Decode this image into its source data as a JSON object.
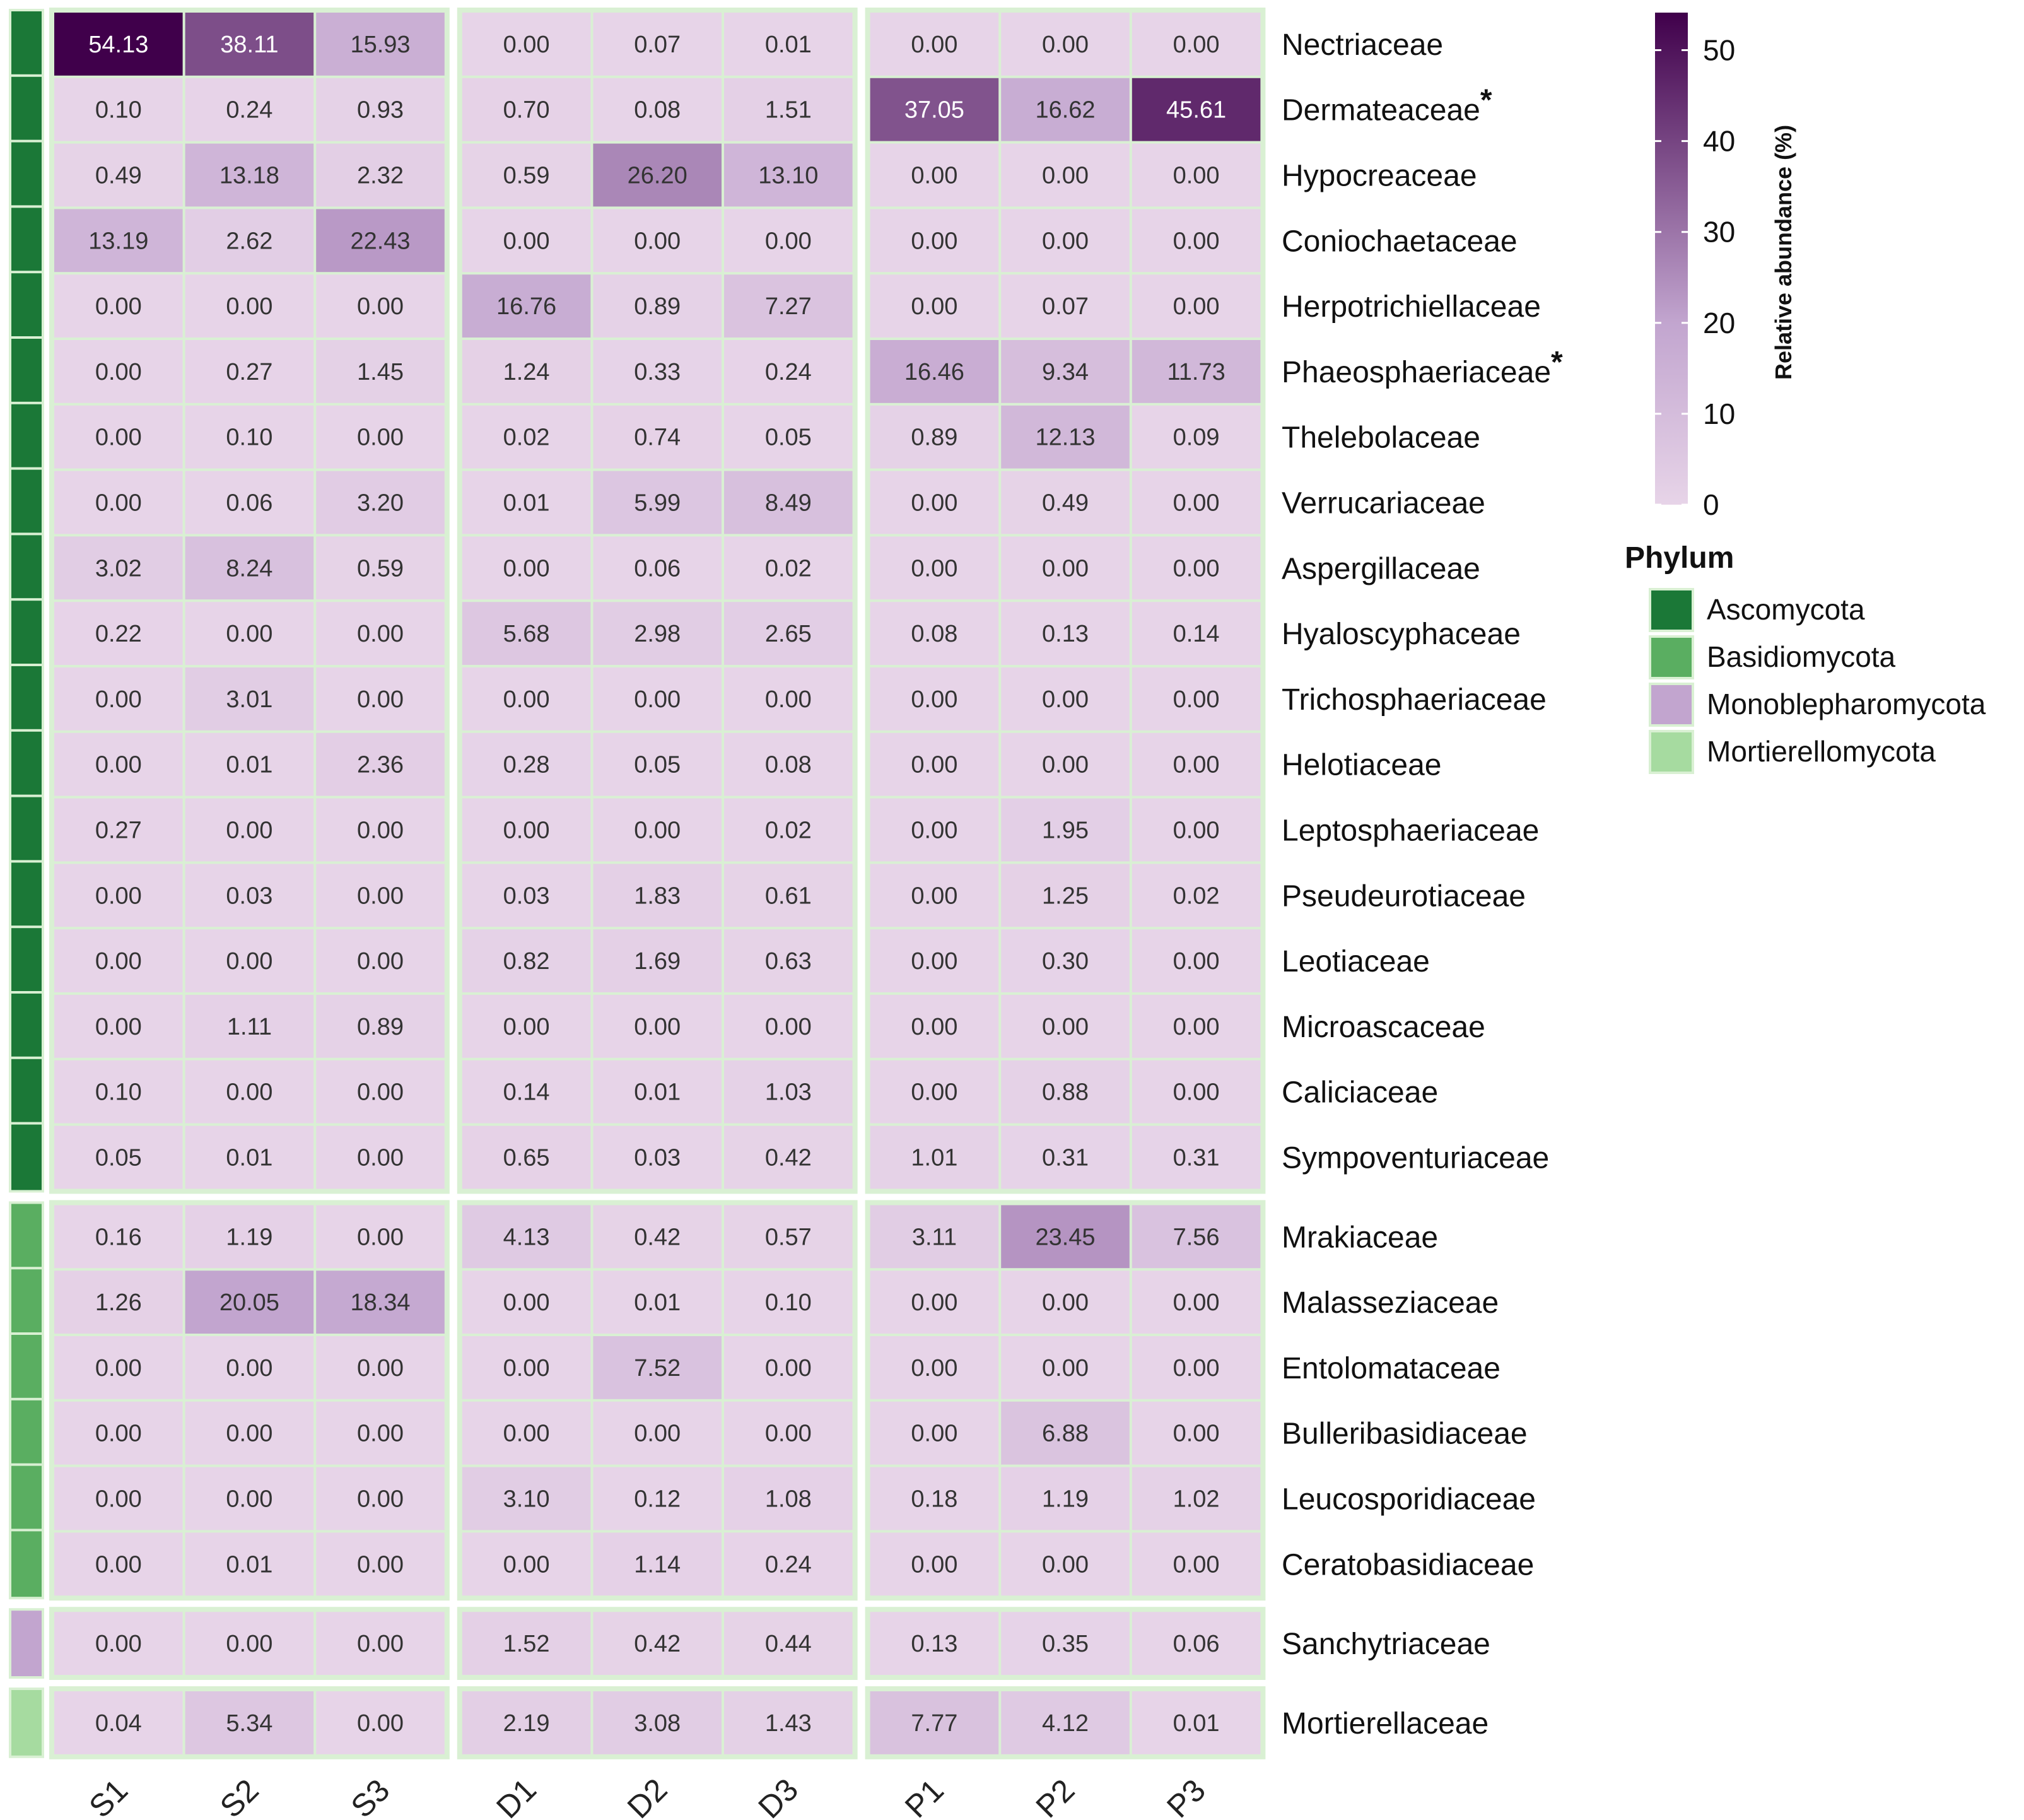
{
  "chart_data": {
    "type": "heatmap",
    "columns": [
      "S1",
      "S2",
      "S3",
      "D1",
      "D2",
      "D3",
      "P1",
      "P2",
      "P3"
    ],
    "column_groups": [
      [
        "S1",
        "S2",
        "S3"
      ],
      [
        "D1",
        "D2",
        "D3"
      ],
      [
        "P1",
        "P2",
        "P3"
      ]
    ],
    "rows": [
      {
        "label": "Nectriaceae",
        "asterisk": false,
        "phylum": "Ascomycota",
        "values": [
          "54.13",
          "38.11",
          "15.93",
          "0.00",
          "0.07",
          "0.01",
          "0.00",
          "0.00",
          "0.00"
        ]
      },
      {
        "label": "Dermateaceae",
        "asterisk": true,
        "phylum": "Ascomycota",
        "values": [
          "0.10",
          "0.24",
          "0.93",
          "0.70",
          "0.08",
          "1.51",
          "37.05",
          "16.62",
          "45.61"
        ]
      },
      {
        "label": "Hypocreaceae",
        "asterisk": false,
        "phylum": "Ascomycota",
        "values": [
          "0.49",
          "13.18",
          "2.32",
          "0.59",
          "26.20",
          "13.10",
          "0.00",
          "0.00",
          "0.00"
        ]
      },
      {
        "label": "Coniochaetaceae",
        "asterisk": false,
        "phylum": "Ascomycota",
        "values": [
          "13.19",
          "2.62",
          "22.43",
          "0.00",
          "0.00",
          "0.00",
          "0.00",
          "0.00",
          "0.00"
        ]
      },
      {
        "label": "Herpotrichiellaceae",
        "asterisk": false,
        "phylum": "Ascomycota",
        "values": [
          "0.00",
          "0.00",
          "0.00",
          "16.76",
          "0.89",
          "7.27",
          "0.00",
          "0.07",
          "0.00"
        ]
      },
      {
        "label": "Phaeosphaeriaceae",
        "asterisk": true,
        "phylum": "Ascomycota",
        "values": [
          "0.00",
          "0.27",
          "1.45",
          "1.24",
          "0.33",
          "0.24",
          "16.46",
          "9.34",
          "11.73"
        ]
      },
      {
        "label": "Thelebolaceae",
        "asterisk": false,
        "phylum": "Ascomycota",
        "values": [
          "0.00",
          "0.10",
          "0.00",
          "0.02",
          "0.74",
          "0.05",
          "0.89",
          "12.13",
          "0.09"
        ]
      },
      {
        "label": "Verrucariaceae",
        "asterisk": false,
        "phylum": "Ascomycota",
        "values": [
          "0.00",
          "0.06",
          "3.20",
          "0.01",
          "5.99",
          "8.49",
          "0.00",
          "0.49",
          "0.00"
        ]
      },
      {
        "label": "Aspergillaceae",
        "asterisk": false,
        "phylum": "Ascomycota",
        "values": [
          "3.02",
          "8.24",
          "0.59",
          "0.00",
          "0.06",
          "0.02",
          "0.00",
          "0.00",
          "0.00"
        ]
      },
      {
        "label": "Hyaloscyphaceae",
        "asterisk": false,
        "phylum": "Ascomycota",
        "values": [
          "0.22",
          "0.00",
          "0.00",
          "5.68",
          "2.98",
          "2.65",
          "0.08",
          "0.13",
          "0.14"
        ]
      },
      {
        "label": "Trichosphaeriaceae",
        "asterisk": false,
        "phylum": "Ascomycota",
        "values": [
          "0.00",
          "3.01",
          "0.00",
          "0.00",
          "0.00",
          "0.00",
          "0.00",
          "0.00",
          "0.00"
        ]
      },
      {
        "label": "Helotiaceae",
        "asterisk": false,
        "phylum": "Ascomycota",
        "values": [
          "0.00",
          "0.01",
          "2.36",
          "0.28",
          "0.05",
          "0.08",
          "0.00",
          "0.00",
          "0.00"
        ]
      },
      {
        "label": "Leptosphaeriaceae",
        "asterisk": false,
        "phylum": "Ascomycota",
        "values": [
          "0.27",
          "0.00",
          "0.00",
          "0.00",
          "0.00",
          "0.02",
          "0.00",
          "1.95",
          "0.00"
        ]
      },
      {
        "label": "Pseudeurotiaceae",
        "asterisk": false,
        "phylum": "Ascomycota",
        "values": [
          "0.00",
          "0.03",
          "0.00",
          "0.03",
          "1.83",
          "0.61",
          "0.00",
          "1.25",
          "0.02"
        ]
      },
      {
        "label": "Leotiaceae",
        "asterisk": false,
        "phylum": "Ascomycota",
        "values": [
          "0.00",
          "0.00",
          "0.00",
          "0.82",
          "1.69",
          "0.63",
          "0.00",
          "0.30",
          "0.00"
        ]
      },
      {
        "label": "Microascaceae",
        "asterisk": false,
        "phylum": "Ascomycota",
        "values": [
          "0.00",
          "1.11",
          "0.89",
          "0.00",
          "0.00",
          "0.00",
          "0.00",
          "0.00",
          "0.00"
        ]
      },
      {
        "label": "Caliciaceae",
        "asterisk": false,
        "phylum": "Ascomycota",
        "values": [
          "0.10",
          "0.00",
          "0.00",
          "0.14",
          "0.01",
          "1.03",
          "0.00",
          "0.88",
          "0.00"
        ]
      },
      {
        "label": "Sympoventuriaceae",
        "asterisk": false,
        "phylum": "Ascomycota",
        "values": [
          "0.05",
          "0.01",
          "0.00",
          "0.65",
          "0.03",
          "0.42",
          "1.01",
          "0.31",
          "0.31"
        ]
      },
      {
        "label": "Mrakiaceae",
        "asterisk": false,
        "phylum": "Basidiomycota",
        "values": [
          "0.16",
          "1.19",
          "0.00",
          "4.13",
          "0.42",
          "0.57",
          "3.11",
          "23.45",
          "7.56"
        ]
      },
      {
        "label": "Malasseziaceae",
        "asterisk": false,
        "phylum": "Basidiomycota",
        "values": [
          "1.26",
          "20.05",
          "18.34",
          "0.00",
          "0.01",
          "0.10",
          "0.00",
          "0.00",
          "0.00"
        ]
      },
      {
        "label": "Entolomataceae",
        "asterisk": false,
        "phylum": "Basidiomycota",
        "values": [
          "0.00",
          "0.00",
          "0.00",
          "0.00",
          "7.52",
          "0.00",
          "0.00",
          "0.00",
          "0.00"
        ]
      },
      {
        "label": "Bulleribasidiaceae",
        "asterisk": false,
        "phylum": "Basidiomycota",
        "values": [
          "0.00",
          "0.00",
          "0.00",
          "0.00",
          "0.00",
          "0.00",
          "0.00",
          "6.88",
          "0.00"
        ]
      },
      {
        "label": "Leucosporidiaceae",
        "asterisk": false,
        "phylum": "Basidiomycota",
        "values": [
          "0.00",
          "0.00",
          "0.00",
          "3.10",
          "0.12",
          "1.08",
          "0.18",
          "1.19",
          "1.02"
        ]
      },
      {
        "label": "Ceratobasidiaceae",
        "asterisk": false,
        "phylum": "Basidiomycota",
        "values": [
          "0.00",
          "0.01",
          "0.00",
          "0.00",
          "1.14",
          "0.24",
          "0.00",
          "0.00",
          "0.00"
        ]
      },
      {
        "label": "Sanchytriaceae",
        "asterisk": false,
        "phylum": "Monoblepharomycota",
        "values": [
          "0.00",
          "0.00",
          "0.00",
          "1.52",
          "0.42",
          "0.44",
          "0.13",
          "0.35",
          "0.06"
        ]
      },
      {
        "label": "Mortierellaceae",
        "asterisk": false,
        "phylum": "Mortierellomycota",
        "values": [
          "0.04",
          "5.34",
          "0.00",
          "2.19",
          "3.08",
          "1.43",
          "7.77",
          "4.12",
          "0.01"
        ]
      }
    ],
    "colorbar": {
      "title": "Relative abundance (%)",
      "range": [
        0,
        54.13
      ],
      "ticks": [
        "0",
        "10",
        "20",
        "30",
        "40",
        "50"
      ],
      "color_low": "#e7d4e8",
      "color_mid": "#c2a5cf",
      "color_high": "#40004b"
    },
    "phylum_legend": {
      "title": "Phylum",
      "items": [
        {
          "name": "Ascomycota",
          "color": "#1b7837"
        },
        {
          "name": "Basidiomycota",
          "color": "#5aae61"
        },
        {
          "name": "Monoblepharomycota",
          "color": "#c2a5cf"
        },
        {
          "name": "Mortierellomycota",
          "color": "#a6dba0"
        }
      ]
    }
  }
}
